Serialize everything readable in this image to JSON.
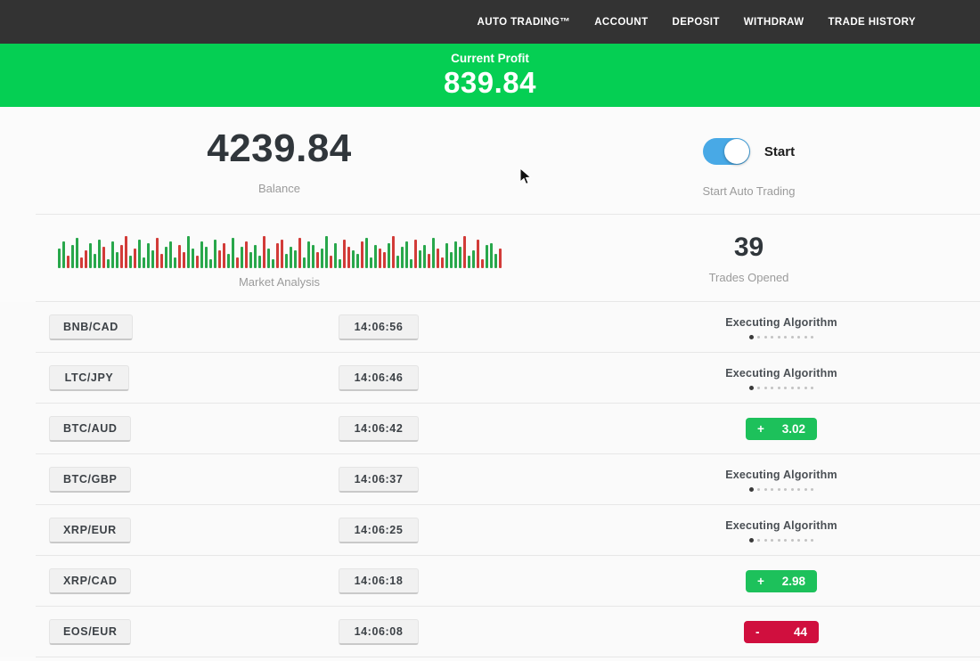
{
  "nav": {
    "items": [
      {
        "label": "AUTO TRADING™"
      },
      {
        "label": "ACCOUNT"
      },
      {
        "label": "DEPOSIT"
      },
      {
        "label": "WITHDRAW"
      },
      {
        "label": "TRADE HISTORY"
      }
    ]
  },
  "banner": {
    "label": "Current Profit",
    "value": "839.84",
    "bg_color": "#05cf53"
  },
  "account": {
    "balance": "4239.84",
    "balance_label": "Balance",
    "toggle_label": "Start",
    "toggle_sublabel": "Start Auto Trading",
    "toggle_state": "on",
    "toggle_color": "#48a9e6"
  },
  "market": {
    "label": "Market Analysis",
    "trades_opened": "39",
    "trades_label": "Trades Opened",
    "bar_green": "#28a74b",
    "bar_red": "#d23b38",
    "bars_heights": [
      22,
      30,
      14,
      26,
      34,
      12,
      20,
      28,
      16,
      32,
      24,
      10,
      30,
      18,
      26,
      36,
      14,
      22,
      32,
      12,
      28,
      20,
      34,
      16,
      24,
      30,
      12,
      26,
      18,
      36,
      22,
      14,
      30,
      24,
      10,
      32,
      20,
      28,
      16,
      34,
      12,
      24,
      30,
      18,
      26,
      14,
      36,
      22,
      10,
      28,
      32,
      16,
      24,
      20,
      34,
      12,
      30,
      26,
      18,
      22,
      36,
      14,
      28,
      10,
      32,
      24,
      20,
      16,
      30,
      34,
      12,
      26,
      22,
      18,
      28,
      36,
      14,
      24,
      30,
      10,
      32,
      20,
      26,
      16,
      34,
      22,
      12,
      28,
      18,
      30,
      24,
      36,
      14,
      20,
      32,
      10,
      26,
      28,
      16,
      22
    ],
    "bars_colors": "ggrggrrgggrgggrrgrggggrrgggrrggrggggrrggrgrgggrggrrgggrgggrggrggrrggrgggrrgrggggrggrgrrggggrggrrgggr"
  },
  "strings": {
    "executing_label": "Executing Algorithm",
    "progress_dots": 10
  },
  "colors": {
    "profit_badge": "#1dc15b",
    "loss_badge": "#d00f3e",
    "nav_bg": "#333333"
  },
  "rows": [
    {
      "pair": "BNB/CAD",
      "time": "14:06:56",
      "status": "executing"
    },
    {
      "pair": "LTC/JPY",
      "time": "14:06:46",
      "status": "executing"
    },
    {
      "pair": "BTC/AUD",
      "time": "14:06:42",
      "status": "profit",
      "sign": "+",
      "amount": "3.02"
    },
    {
      "pair": "BTC/GBP",
      "time": "14:06:37",
      "status": "executing"
    },
    {
      "pair": "XRP/EUR",
      "time": "14:06:25",
      "status": "executing"
    },
    {
      "pair": "XRP/CAD",
      "time": "14:06:18",
      "status": "profit",
      "sign": "+",
      "amount": "2.98"
    },
    {
      "pair": "EOS/EUR",
      "time": "14:06:08",
      "status": "loss",
      "sign": "-",
      "amount": "44"
    }
  ]
}
